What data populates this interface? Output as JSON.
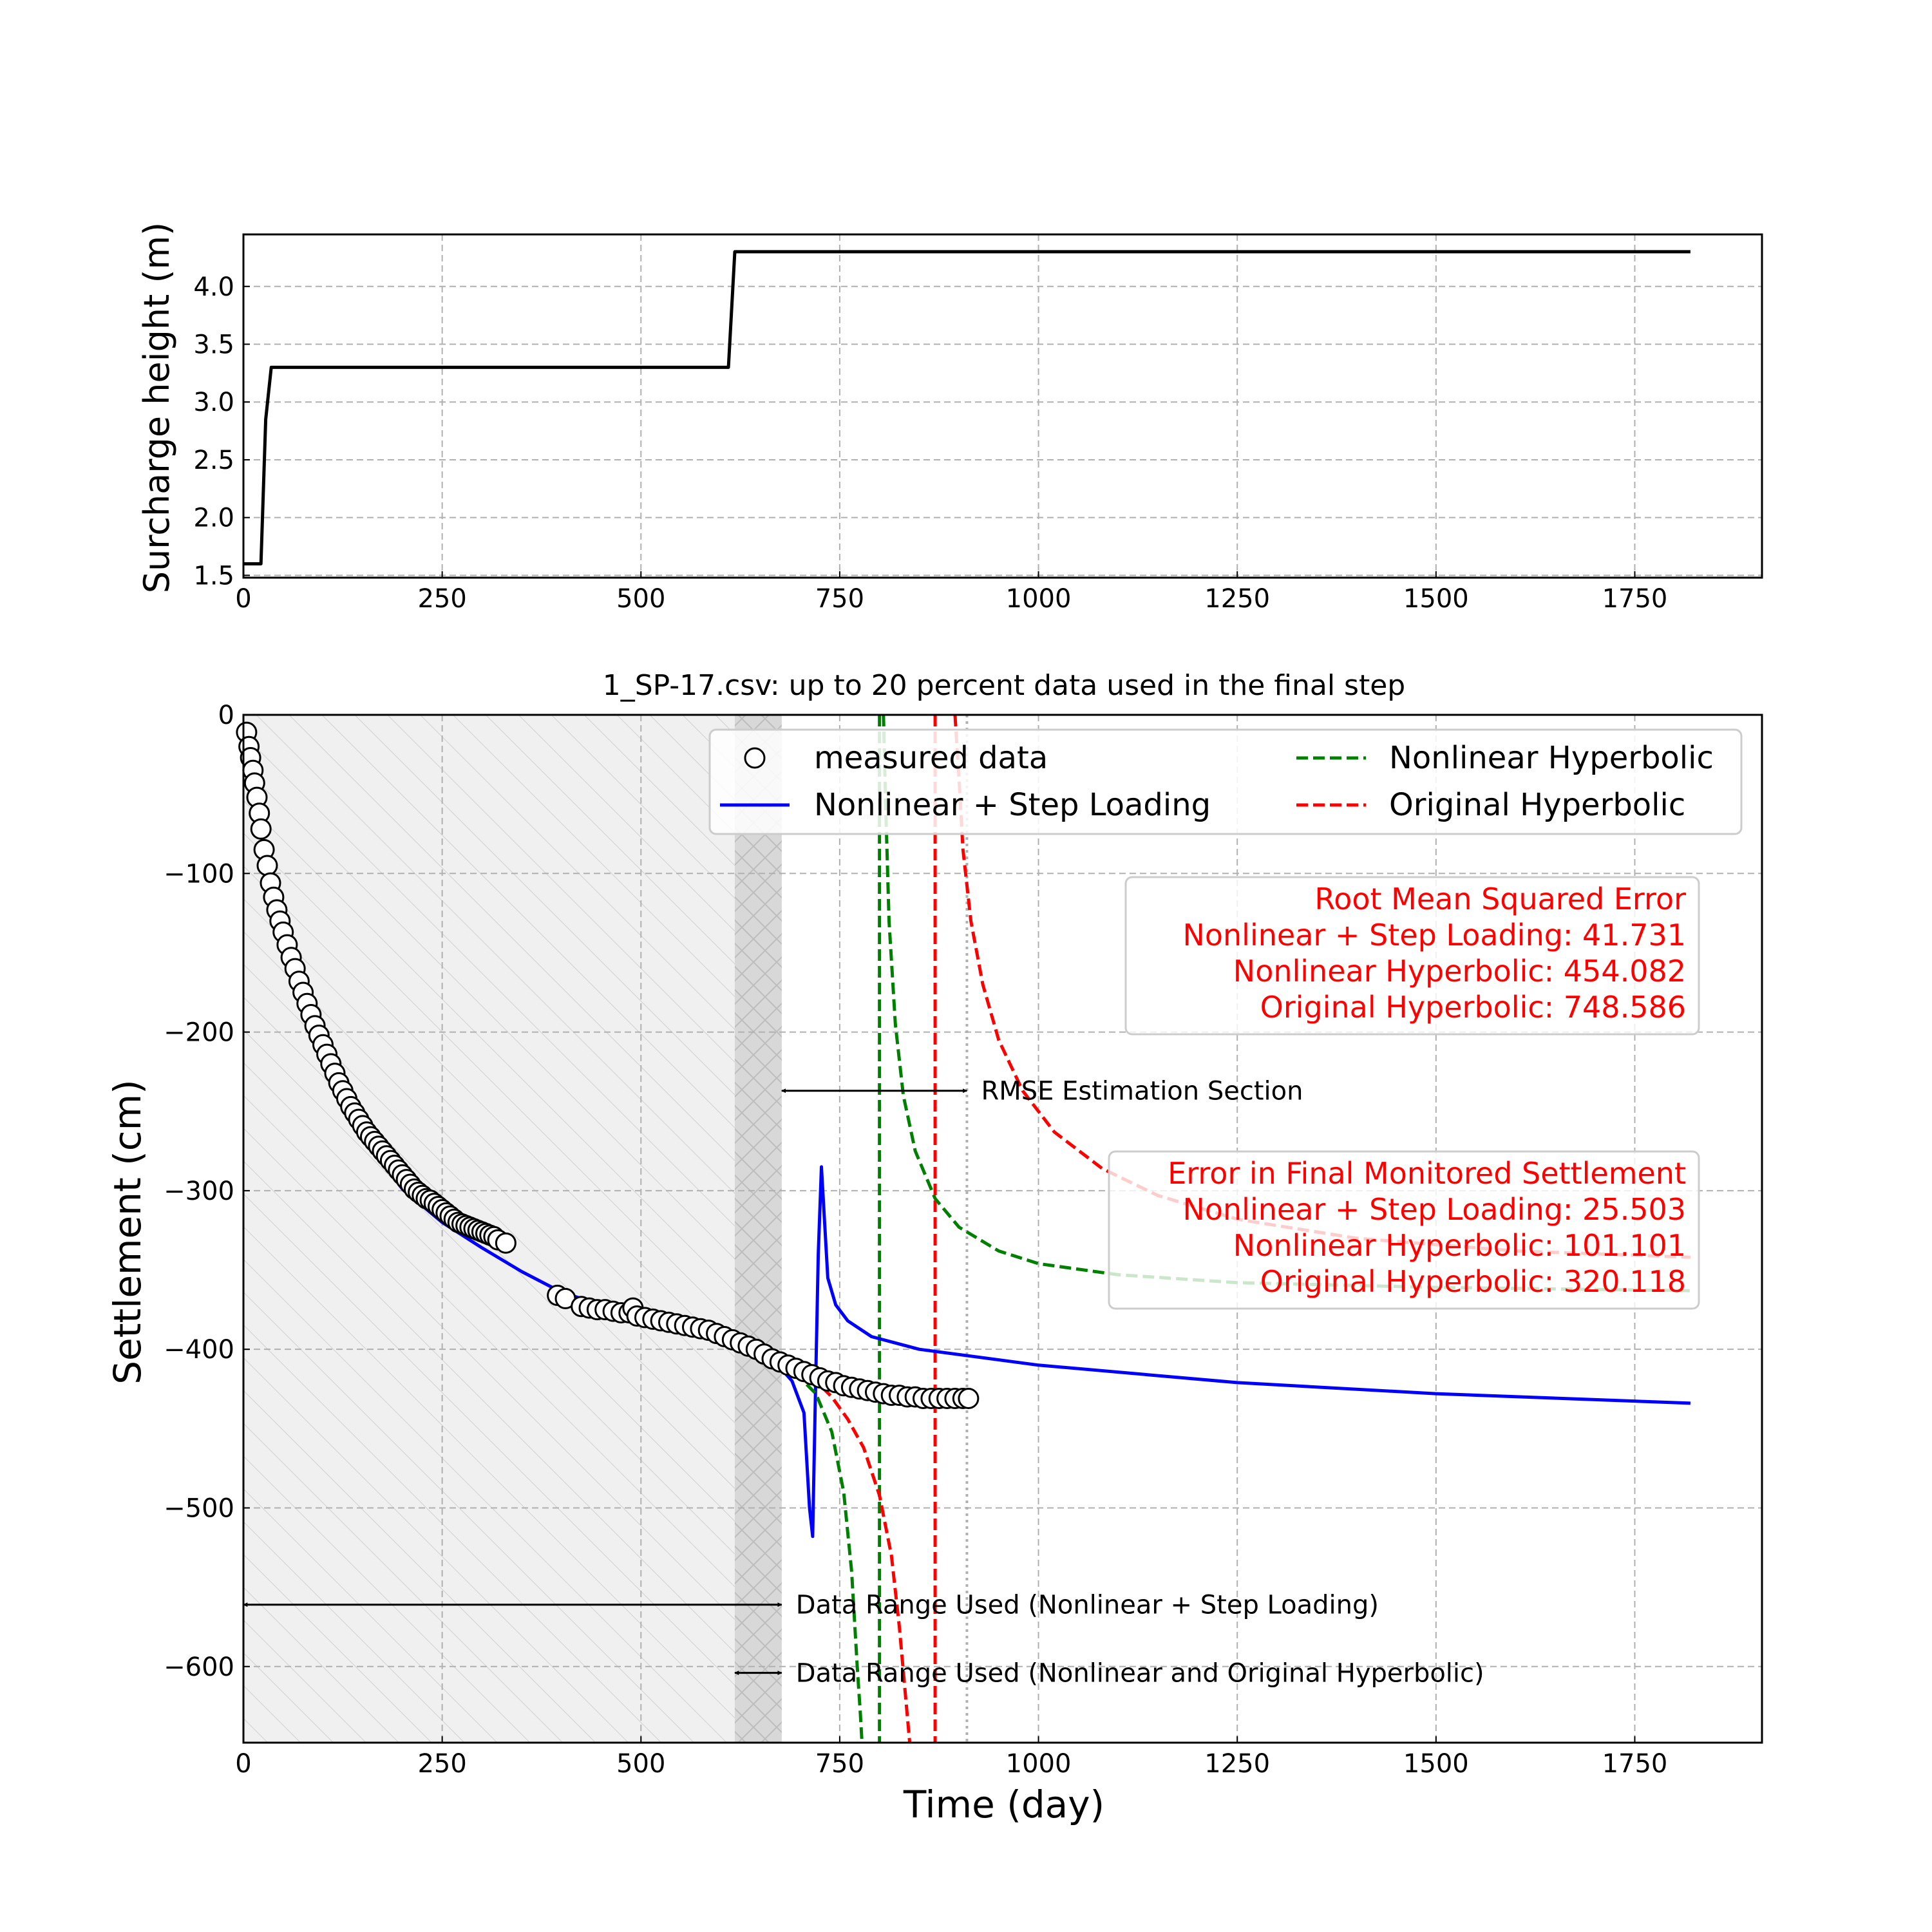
{
  "colors": {
    "surcharge": "#000000",
    "measured_edge": "#000000",
    "nonlinear_step": "#0000ff",
    "nonlinear_hyperbolic": "#008000",
    "original_hyperbolic": "#ff0000",
    "text_error": "#ff0000",
    "grid": "#b0b0b0",
    "shade_light": "#f0f0f0",
    "shade_dark": "#d8d8d8"
  },
  "chart_data": [
    {
      "type": "line",
      "ylabel": "Surcharge height (m)",
      "xlabel": "",
      "xlim": [
        0,
        1910
      ],
      "ylim": [
        1.48,
        4.45
      ],
      "xticks": [
        0,
        250,
        500,
        750,
        1000,
        1250,
        1500,
        1750
      ],
      "yticks": [
        1.5,
        2.0,
        2.5,
        3.0,
        3.5,
        4.0
      ],
      "ytick_labels": [
        "1.5",
        "2.0",
        "2.5",
        "3.0",
        "3.5",
        "4.0"
      ],
      "grid": true,
      "series": [
        {
          "x": [
            0,
            22,
            28,
            35,
            610,
            618,
            1820
          ],
          "y": [
            1.6,
            1.6,
            2.85,
            3.3,
            3.3,
            4.3,
            4.3
          ]
        }
      ]
    },
    {
      "type": "scatter+line",
      "title": "1_SP-17.csv: up to 20 percent data used in the final step",
      "xlabel": "Time (day)",
      "ylabel": "Settlement (cm)",
      "xlim": [
        0,
        1910
      ],
      "ylim": [
        -648,
        0
      ],
      "xticks": [
        0,
        250,
        500,
        750,
        1000,
        1250,
        1500,
        1750
      ],
      "yticks": [
        0,
        -100,
        -200,
        -300,
        -400,
        -500,
        -600
      ],
      "ytick_labels": [
        "0",
        "−100",
        "−200",
        "−300",
        "−400",
        "−500",
        "−600"
      ],
      "grid": true,
      "legend": {
        "placement": "top-right",
        "entries": [
          "measured data",
          "Nonlinear + Step Loading",
          "Nonlinear Hyperbolic",
          "Original Hyperbolic"
        ]
      },
      "shaded_ranges": [
        {
          "from": 0,
          "to": 677,
          "style": "hatched-light"
        },
        {
          "from": 618,
          "to": 677,
          "style": "cross-hatched-dark"
        }
      ],
      "vertical_lines": [
        {
          "x": 800,
          "style": "green-dashed"
        },
        {
          "x": 870,
          "style": "red-dashed"
        },
        {
          "x": 910,
          "style": "gray-dotted"
        }
      ],
      "measured": [
        [
          4,
          -11
        ],
        [
          7,
          -20
        ],
        [
          9,
          -27
        ],
        [
          12,
          -35
        ],
        [
          14,
          -43
        ],
        [
          17,
          -52
        ],
        [
          20,
          -62
        ],
        [
          22,
          -72
        ],
        [
          26,
          -85
        ],
        [
          30,
          -95
        ],
        [
          34,
          -106
        ],
        [
          38,
          -115
        ],
        [
          42,
          -123
        ],
        [
          46,
          -130
        ],
        [
          50,
          -137
        ],
        [
          55,
          -145
        ],
        [
          60,
          -153
        ],
        [
          65,
          -160
        ],
        [
          70,
          -168
        ],
        [
          75,
          -175
        ],
        [
          80,
          -182
        ],
        [
          85,
          -189
        ],
        [
          90,
          -196
        ],
        [
          95,
          -202
        ],
        [
          100,
          -208
        ],
        [
          105,
          -214
        ],
        [
          110,
          -220
        ],
        [
          115,
          -226
        ],
        [
          120,
          -232
        ],
        [
          125,
          -237
        ],
        [
          130,
          -242
        ],
        [
          135,
          -247
        ],
        [
          140,
          -251
        ],
        [
          145,
          -255
        ],
        [
          150,
          -259
        ],
        [
          155,
          -263
        ],
        [
          160,
          -266
        ],
        [
          165,
          -269
        ],
        [
          170,
          -272
        ],
        [
          175,
          -275
        ],
        [
          180,
          -278
        ],
        [
          185,
          -281
        ],
        [
          190,
          -284
        ],
        [
          195,
          -287
        ],
        [
          200,
          -290
        ],
        [
          205,
          -293
        ],
        [
          210,
          -296
        ],
        [
          215,
          -299
        ],
        [
          220,
          -301
        ],
        [
          225,
          -303
        ],
        [
          230,
          -305
        ],
        [
          235,
          -306
        ],
        [
          240,
          -308
        ],
        [
          245,
          -310
        ],
        [
          250,
          -312
        ],
        [
          255,
          -314
        ],
        [
          260,
          -316
        ],
        [
          265,
          -318
        ],
        [
          270,
          -320
        ],
        [
          275,
          -321
        ],
        [
          280,
          -322
        ],
        [
          285,
          -323
        ],
        [
          290,
          -324
        ],
        [
          295,
          -325
        ],
        [
          300,
          -326
        ],
        [
          305,
          -327
        ],
        [
          310,
          -328
        ],
        [
          315,
          -329
        ],
        [
          320,
          -331
        ],
        [
          330,
          -333
        ],
        [
          395,
          -366
        ],
        [
          405,
          -368
        ],
        [
          425,
          -373
        ],
        [
          435,
          -374
        ],
        [
          445,
          -375
        ],
        [
          455,
          -375
        ],
        [
          465,
          -376
        ],
        [
          475,
          -377
        ],
        [
          485,
          -377
        ],
        [
          490,
          -374
        ],
        [
          495,
          -379
        ],
        [
          505,
          -380
        ],
        [
          515,
          -381
        ],
        [
          525,
          -382
        ],
        [
          535,
          -383
        ],
        [
          545,
          -384
        ],
        [
          555,
          -385
        ],
        [
          565,
          -386
        ],
        [
          575,
          -387
        ],
        [
          585,
          -388
        ],
        [
          595,
          -390
        ],
        [
          605,
          -392
        ],
        [
          615,
          -394
        ],
        [
          625,
          -396
        ],
        [
          635,
          -398
        ],
        [
          645,
          -400
        ],
        [
          655,
          -403
        ],
        [
          665,
          -406
        ],
        [
          675,
          -408
        ],
        [
          685,
          -410
        ],
        [
          695,
          -412
        ],
        [
          705,
          -414
        ],
        [
          715,
          -416
        ],
        [
          725,
          -418
        ],
        [
          735,
          -420
        ],
        [
          745,
          -421
        ],
        [
          755,
          -423
        ],
        [
          765,
          -424
        ],
        [
          775,
          -425
        ],
        [
          785,
          -426
        ],
        [
          795,
          -427
        ],
        [
          805,
          -428
        ],
        [
          815,
          -429
        ],
        [
          825,
          -429
        ],
        [
          835,
          -430
        ],
        [
          845,
          -430
        ],
        [
          855,
          -431
        ],
        [
          865,
          -431
        ],
        [
          875,
          -431
        ],
        [
          885,
          -431
        ],
        [
          895,
          -431
        ],
        [
          905,
          -431
        ],
        [
          912,
          -431
        ]
      ],
      "series": [
        {
          "name": "Nonlinear + Step Loading",
          "x": [
            0,
            10,
            25,
            50,
            75,
            100,
            150,
            200,
            250,
            300,
            350,
            400,
            450,
            500,
            550,
            600,
            620,
            660,
            690,
            705,
            712,
            716,
            719,
            723,
            727,
            735,
            745,
            760,
            790,
            850,
            1000,
            1250,
            1500,
            1820
          ],
          "y": [
            -10,
            -40,
            -82,
            -138,
            -180,
            -214,
            -265,
            -299,
            -320,
            -336,
            -351,
            -364,
            -372,
            -378,
            -383,
            -390,
            -394,
            -403,
            -420,
            -440,
            -500,
            -518,
            -440,
            -340,
            -285,
            -355,
            -372,
            -382,
            -392,
            -400,
            -410,
            -421,
            -428,
            -434
          ]
        },
        {
          "name": "Nonlinear Hyperbolic",
          "left_branch": {
            "x": [
              600,
              620,
              650,
              680,
              700,
              720,
              740,
              755,
              765,
              772,
              776,
              778
            ],
            "y": [
              -391,
              -395,
              -401,
              -410,
              -418,
              -428,
              -452,
              -490,
              -540,
              -600,
              -630,
              -648
            ]
          },
          "right_branch": {
            "x": [
              805,
              808,
              812,
              820,
              830,
              845,
              870,
              900,
              950,
              1000,
              1100,
              1250,
              1500,
              1820
            ],
            "y": [
              0,
              -60,
              -130,
              -195,
              -240,
              -275,
              -305,
              -323,
              -338,
              -346,
              -353,
              -358,
              -361,
              -363
            ]
          }
        },
        {
          "name": "Original Hyperbolic",
          "left_branch": {
            "x": [
              600,
              620,
              650,
              680,
              700,
              720,
              740,
              760,
              780,
              800,
              815,
              825,
              833,
              838
            ],
            "y": [
              -389,
              -393,
              -398,
              -406,
              -412,
              -420,
              -430,
              -444,
              -462,
              -492,
              -530,
              -575,
              -620,
              -648
            ]
          },
          "right_branch": {
            "x": [
              895,
              900,
              905,
              915,
              930,
              950,
              980,
              1020,
              1080,
              1150,
              1250,
              1400,
              1600,
              1820
            ],
            "y": [
              0,
              -40,
              -85,
              -130,
              -170,
              -205,
              -237,
              -263,
              -286,
              -303,
              -318,
              -330,
              -338,
              -342
            ]
          }
        }
      ],
      "annotations": {
        "rmse_box": [
          "Root Mean Squared Error",
          "Nonlinear + Step Loading: 41.731",
          "Nonlinear Hyperbolic: 454.082",
          "Original Hyperbolic: 748.586"
        ],
        "final_box": [
          "Error in Final Monitored Settlement",
          "Nonlinear + Step Loading: 25.503",
          "Nonlinear Hyperbolic: 101.101",
          "Original Hyperbolic: 320.118"
        ],
        "arrows": [
          {
            "label": "RMSE Estimation Section",
            "from": 677,
            "to": 910,
            "y": -237
          },
          {
            "label": "Data Range Used (Nonlinear + Step Loading)",
            "from": 0,
            "to": 677,
            "y": -561
          },
          {
            "label": "Data Range Used (Nonlinear and Original Hyperbolic)",
            "from": 618,
            "to": 677,
            "y": -604
          }
        ]
      }
    }
  ]
}
